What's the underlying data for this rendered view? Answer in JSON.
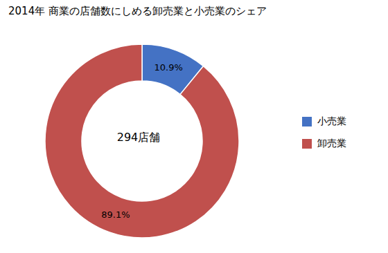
{
  "chart_data": {
    "type": "pie",
    "title": "2014年 商業の店舗数にしめる卸売業と小売業のシェア",
    "categories": [
      "小売業",
      "卸売業"
    ],
    "values": [
      10.9,
      89.1
    ],
    "colors": [
      "#4472C4",
      "#C0504D"
    ],
    "data_labels": true,
    "value_labels": [
      "10.9%",
      "89.1%"
    ],
    "annotations": [
      "294店舗"
    ],
    "legend": "right"
  }
}
